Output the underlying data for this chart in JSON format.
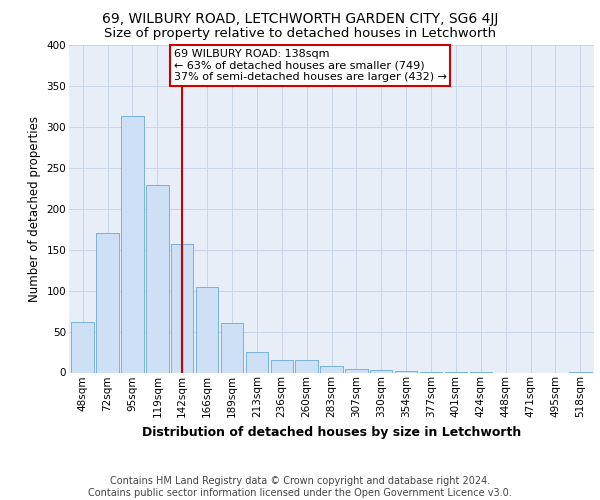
{
  "title_line1": "69, WILBURY ROAD, LETCHWORTH GARDEN CITY, SG6 4JJ",
  "title_line2": "Size of property relative to detached houses in Letchworth",
  "xlabel": "Distribution of detached houses by size in Letchworth",
  "ylabel": "Number of detached properties",
  "categories": [
    "48sqm",
    "72sqm",
    "95sqm",
    "119sqm",
    "142sqm",
    "166sqm",
    "189sqm",
    "213sqm",
    "236sqm",
    "260sqm",
    "283sqm",
    "307sqm",
    "330sqm",
    "354sqm",
    "377sqm",
    "401sqm",
    "424sqm",
    "448sqm",
    "471sqm",
    "495sqm",
    "518sqm"
  ],
  "values": [
    62,
    170,
    313,
    229,
    157,
    104,
    60,
    25,
    15,
    15,
    8,
    4,
    3,
    2,
    1,
    1,
    1,
    0,
    0,
    0,
    1
  ],
  "bar_color": "#cde0f5",
  "bar_edge_color": "#6aaad4",
  "vline_x": 4,
  "vline_color": "#cc0000",
  "annotation_text": "69 WILBURY ROAD: 138sqm\n← 63% of detached houses are smaller (749)\n37% of semi-detached houses are larger (432) →",
  "annotation_box_color": "#ffffff",
  "annotation_box_edge_color": "#cc0000",
  "ylim": [
    0,
    400
  ],
  "yticks": [
    0,
    50,
    100,
    150,
    200,
    250,
    300,
    350,
    400
  ],
  "grid_color": "#c8d4e8",
  "background_color": "#e8eef8",
  "footer_text": "Contains HM Land Registry data © Crown copyright and database right 2024.\nContains public sector information licensed under the Open Government Licence v3.0.",
  "title_fontsize": 10,
  "subtitle_fontsize": 9.5,
  "axis_label_fontsize": 8.5,
  "tick_fontsize": 7.5,
  "annotation_fontsize": 8,
  "footer_fontsize": 7
}
